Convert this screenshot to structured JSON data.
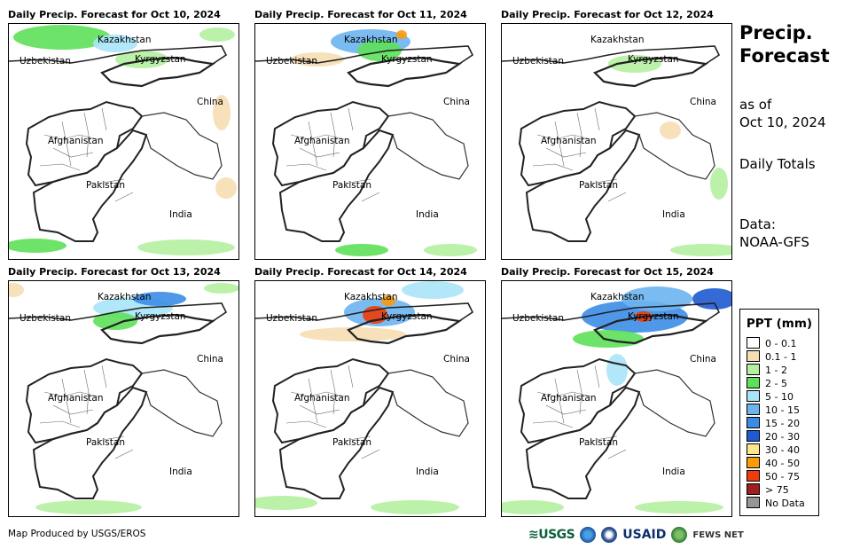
{
  "panels": [
    {
      "title": "Daily Precip. Forecast for Oct 10, 2024"
    },
    {
      "title": "Daily Precip. Forecast for Oct 11, 2024"
    },
    {
      "title": "Daily Precip. Forecast for Oct 12, 2024"
    },
    {
      "title": "Daily Precip. Forecast for Oct 13, 2024"
    },
    {
      "title": "Daily Precip. Forecast for Oct 14, 2024"
    },
    {
      "title": "Daily Precip. Forecast for Oct 15, 2024"
    }
  ],
  "country_labels": {
    "kazakhstan": "Kazakhstan",
    "uzbekistan": "Uzbekistan",
    "kyrgyzstan": "Kyrgyzstan",
    "china": "China",
    "afghanistan": "Afghanistan",
    "pakistan": "Pakistan",
    "india": "India"
  },
  "side": {
    "title_line1": "Precip.",
    "title_line2": "Forecast",
    "asof_line1": "as of",
    "asof_line2": "Oct 10, 2024",
    "totals": "Daily Totals",
    "data_line1": "Data:",
    "data_line2": "NOAA-GFS"
  },
  "legend": {
    "title": "PPT (mm)",
    "items": [
      {
        "label": "0 - 0.1",
        "color": "#ffffff"
      },
      {
        "label": "0.1 - 1",
        "color": "#f5deb3"
      },
      {
        "label": "1 - 2",
        "color": "#b4f0a0"
      },
      {
        "label": "2 - 5",
        "color": "#5ee05a"
      },
      {
        "label": "5 - 10",
        "color": "#a8e4f8"
      },
      {
        "label": "10 - 15",
        "color": "#6cb4f0"
      },
      {
        "label": "15 - 20",
        "color": "#3c8ce6"
      },
      {
        "label": "20 - 30",
        "color": "#1e5ad2"
      },
      {
        "label": "30 - 40",
        "color": "#fae68c"
      },
      {
        "label": "40 - 50",
        "color": "#fa9b0a"
      },
      {
        "label": "50 - 75",
        "color": "#f03c0a"
      },
      {
        "label": "> 75",
        "color": "#a01e1e"
      },
      {
        "label": "No Data",
        "color": "#969696"
      }
    ]
  },
  "credit": "Map Produced by USGS/EROS",
  "logos": {
    "usgs": "≋USGS",
    "usaid": "USAID",
    "fews": "FEWS NET"
  }
}
